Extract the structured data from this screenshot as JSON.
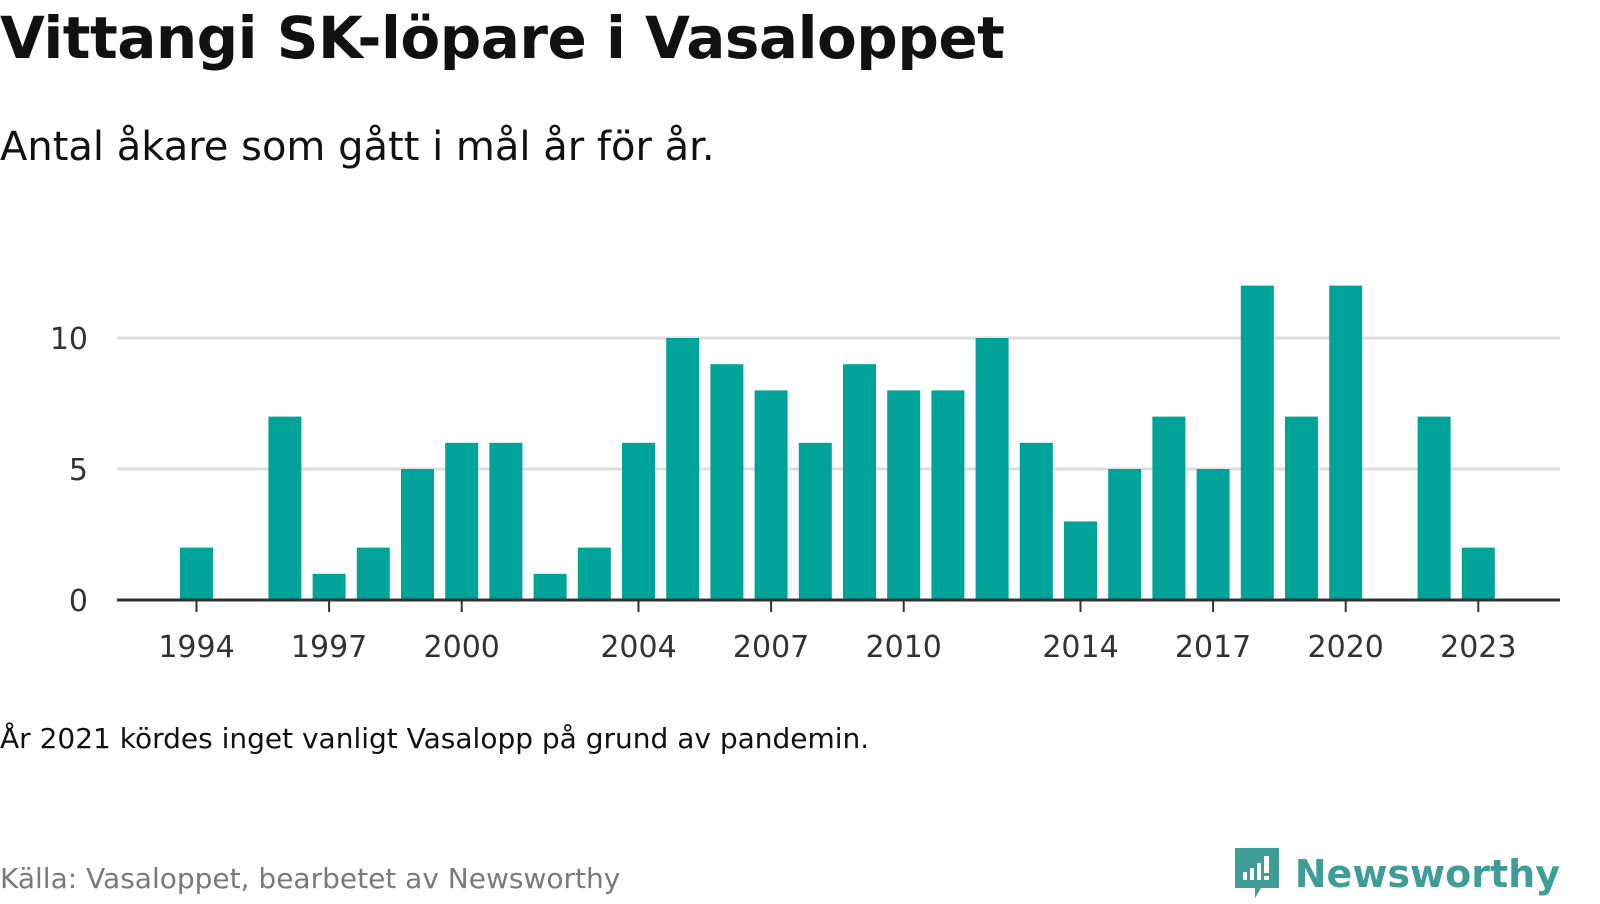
{
  "header": {
    "title": "Vittangi SK-löpare i Vasaloppet",
    "subtitle": "Antal åkare som gått i mål år för år."
  },
  "footer": {
    "note": "År 2021 kördes inget vanligt Vasalopp på grund av pandemin.",
    "source": "Källa: Vasaloppet, bearbetet av Newsworthy",
    "brand_name": "Newsworthy",
    "brand_icon": "newsworthy-logo-icon"
  },
  "colors": {
    "bar": "#00a39a",
    "grid": "#dddddd",
    "axis": "#333333",
    "brand": "#3f9d98"
  },
  "chart_data": {
    "type": "bar",
    "title": "Vittangi SK-löpare i Vasaloppet",
    "subtitle": "Antal åkare som gått i mål år för år.",
    "x": [
      1994,
      1995,
      1996,
      1997,
      1998,
      1999,
      2000,
      2001,
      2002,
      2003,
      2004,
      2005,
      2006,
      2007,
      2008,
      2009,
      2010,
      2011,
      2012,
      2013,
      2014,
      2015,
      2016,
      2017,
      2018,
      2019,
      2020,
      2021,
      2022,
      2023
    ],
    "values": [
      2,
      0,
      7,
      1,
      2,
      5,
      6,
      6,
      1,
      2,
      6,
      10,
      9,
      8,
      6,
      9,
      8,
      8,
      10,
      6,
      3,
      5,
      7,
      5,
      12,
      7,
      12,
      0,
      7,
      2
    ],
    "x_tick_labels": [
      "1994",
      "1997",
      "2000",
      "2004",
      "2007",
      "2010",
      "2014",
      "2017",
      "2020",
      "2023"
    ],
    "y_tick_labels": [
      "0",
      "5",
      "10"
    ],
    "ylim": [
      0,
      12
    ],
    "xlabel": "",
    "ylabel": "",
    "grid": true,
    "legend": "none"
  }
}
